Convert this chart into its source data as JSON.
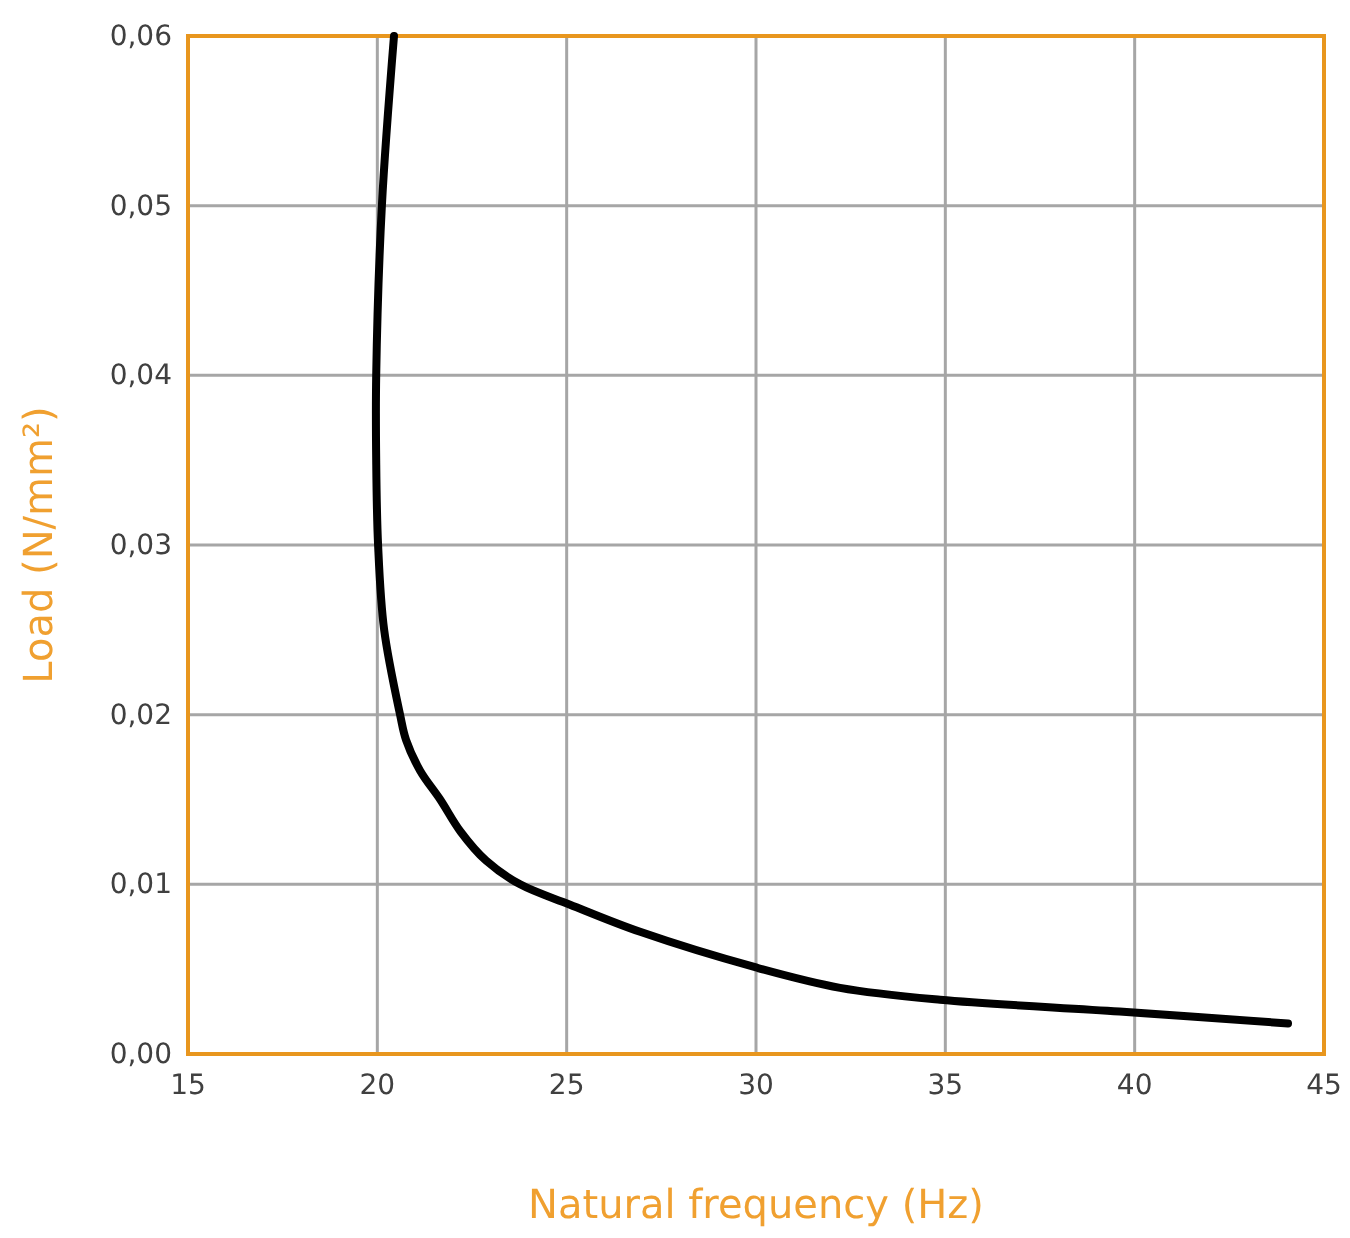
{
  "chart_data": {
    "type": "line",
    "xlabel": "Natural frequency (Hz)",
    "ylabel": "Load (N/mm²)",
    "xlim": [
      15,
      45
    ],
    "xticks": [
      15,
      20,
      25,
      30,
      35,
      40,
      45
    ],
    "ylim": [
      0,
      0.06
    ],
    "yticks": [
      {
        "value": 0,
        "label": "0,00"
      },
      {
        "value": 0.01,
        "label": "0,01"
      },
      {
        "value": 0.02,
        "label": "0,02"
      },
      {
        "value": 0.03,
        "label": "0,03"
      },
      {
        "value": 0.04,
        "label": "0,04"
      },
      {
        "value": 0.05,
        "label": "0,05"
      },
      {
        "value": 0.06,
        "label": "0,06"
      }
    ],
    "grid": true,
    "marker": "none",
    "line_style": "solid",
    "series": [
      {
        "color": "#000000",
        "x": [
          20.44,
          20.12,
          19.97,
          19.97,
          20.02,
          20.18,
          20.6,
          20.76,
          21.13,
          21.66,
          22.2,
          22.87,
          23.77,
          25.09,
          26.94,
          30.0,
          32.22,
          34.86,
          39.6,
          44.05
        ],
        "values": [
          0.06,
          0.05,
          0.04,
          0.035,
          0.03,
          0.025,
          0.02,
          0.0185,
          0.0167,
          0.015,
          0.0131,
          0.0114,
          0.01,
          0.0088,
          0.0072,
          0.0051,
          0.0039,
          0.0032,
          0.0025,
          0.0018
        ]
      }
    ]
  }
}
